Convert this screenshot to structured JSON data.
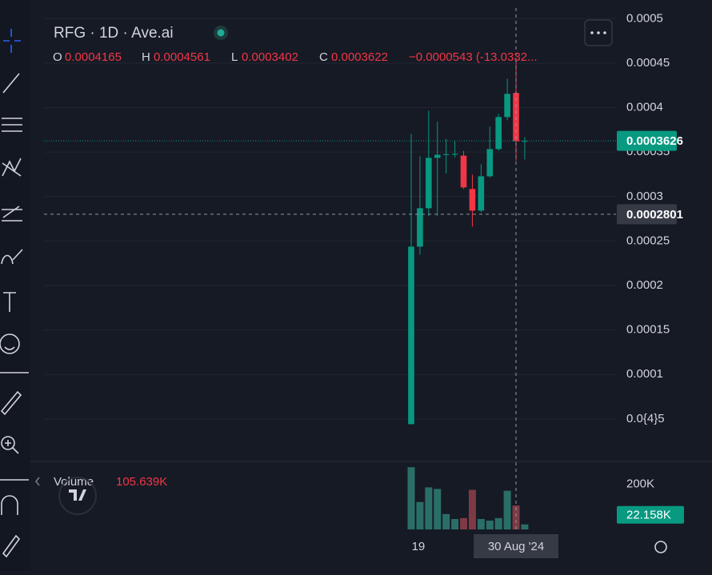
{
  "chart_data": {
    "type": "candlestick",
    "title": "RFG · 1D · Ave.ai",
    "categories": [
      null,
      "19",
      null,
      null,
      null,
      null,
      null,
      null,
      null,
      null,
      null,
      null,
      "30 Aug '24",
      null
    ],
    "crosshair_index": 12,
    "open": [
      4.41e-05,
      0.0002437,
      0.0002869,
      0.0003435,
      0.000347,
      0.0003476,
      0.000346,
      0.0003085,
      0.0002842,
      0.0003228,
      0.0003534,
      0.0003894,
      0.0004165,
      0.0003622
    ],
    "high": [
      0.0003705,
      0.0003453,
      0.0003966,
      0.000384,
      0.000365,
      0.000363,
      0.0003514,
      0.0003247,
      0.0003363,
      0.0003786,
      0.0003929,
      0.0004326,
      0.0004561,
      0.0003668
    ],
    "low": [
      4.41e-05,
      0.0002347,
      0.000278,
      0.000278,
      0.000326,
      0.000344,
      0.0003085,
      0.0002662,
      0.0002825,
      0.0003215,
      0.0003516,
      0.0003858,
      0.0003402,
      0.0003415
    ],
    "close": [
      0.0002437,
      0.0002869,
      0.0003435,
      0.000347,
      0.0003476,
      0.000348,
      0.0003103,
      0.0002842,
      0.0003228,
      0.0003534,
      0.0003894,
      0.0004155,
      0.0003622,
      0.0003626
    ],
    "up_color": "#089981",
    "down_color": "#f23645",
    "ylim": [
      4e-06,
      0.000512
    ],
    "yticks": [
      0.0005,
      0.00045,
      0.0004,
      0.00035,
      0.0003,
      0.00025,
      0.0002,
      0.00015,
      0.0001,
      {
        "value": 5e-05,
        "label": "0.0{4}5"
      }
    ],
    "grid": true,
    "crosshair_price": 0.0002801,
    "legend": {
      "open_key": "O",
      "high_key": "H",
      "low_key": "L",
      "close_key": "C",
      "change": "−0.0000543 (-13.0332..."
    },
    "volume": {
      "name": "Volume",
      "values": [
        275000,
        121000,
        186000,
        179000,
        68000,
        46000,
        50000,
        175000,
        46000,
        39000,
        50000,
        171000,
        105639,
        22158
      ],
      "value_labels": [
        null,
        null,
        null,
        null,
        null,
        null,
        null,
        null,
        null,
        null,
        null,
        null,
        "105.639K",
        "22.158K"
      ],
      "ylim": [
        0,
        290000
      ],
      "yticks": [
        {
          "value": 200000,
          "label": "200K"
        }
      ],
      "up_color": "#2a6f67",
      "down_color": "#7d3a45"
    }
  }
}
